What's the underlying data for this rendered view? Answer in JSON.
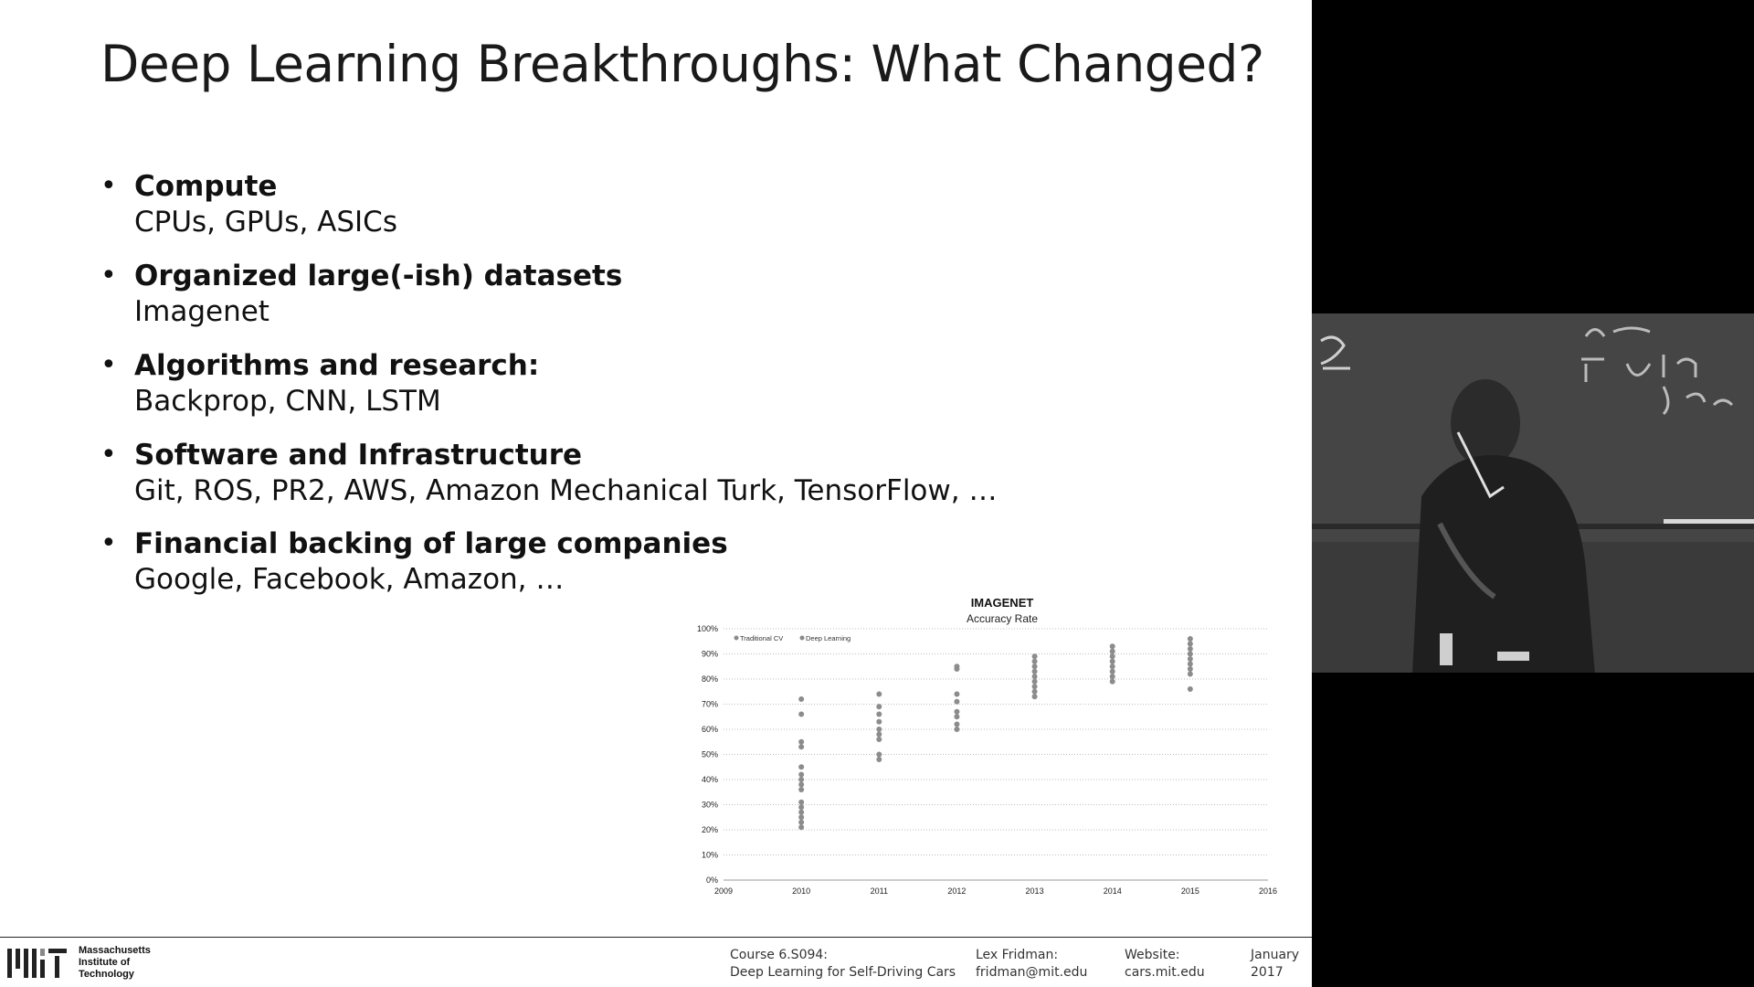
{
  "slide": {
    "title": "Deep Learning Breakthroughs: What Changed?",
    "bullets": [
      {
        "head": "Compute",
        "sub": "CPUs, GPUs, ASICs"
      },
      {
        "head": "Organized large(-ish) datasets",
        "sub": "Imagenet"
      },
      {
        "head": "Algorithms and research:",
        "sub": "Backprop, CNN, LSTM"
      },
      {
        "head": "Software and Infrastructure",
        "sub": "Git, ROS, PR2, AWS, Amazon Mechanical Turk, TensorFlow, …"
      },
      {
        "head": "Financial backing of large companies",
        "sub": "Google, Facebook, Amazon, …"
      }
    ]
  },
  "chart_data": {
    "type": "scatter",
    "title": "IMAGENET",
    "subtitle": "Accuracy Rate",
    "legend": [
      "Traditional CV",
      "Deep Learning"
    ],
    "legend_position": "top-left",
    "x_ticks": [
      "2009",
      "2010",
      "2011",
      "2012",
      "2013",
      "2014",
      "2015",
      "2016"
    ],
    "y_ticks": [
      "0%",
      "10%",
      "20%",
      "30%",
      "40%",
      "50%",
      "60%",
      "70%",
      "80%",
      "90%",
      "100%"
    ],
    "ylim": [
      0,
      100
    ],
    "xlim": [
      2009,
      2016
    ],
    "grid": "dotted horizontal",
    "series": [
      {
        "name": "Traditional CV",
        "points": [
          [
            2010,
            72
          ],
          [
            2010,
            66
          ],
          [
            2010,
            55
          ],
          [
            2010,
            53
          ],
          [
            2010,
            45
          ],
          [
            2010,
            42
          ],
          [
            2010,
            40
          ],
          [
            2010,
            38
          ],
          [
            2010,
            36
          ],
          [
            2010,
            31
          ],
          [
            2010,
            29
          ],
          [
            2010,
            27
          ],
          [
            2010,
            25
          ],
          [
            2010,
            23
          ],
          [
            2010,
            21
          ],
          [
            2011,
            74
          ],
          [
            2011,
            69
          ],
          [
            2011,
            66
          ],
          [
            2011,
            63
          ],
          [
            2011,
            60
          ],
          [
            2011,
            58
          ],
          [
            2011,
            56
          ],
          [
            2011,
            50
          ],
          [
            2011,
            48
          ],
          [
            2012,
            85
          ],
          [
            2012,
            84
          ],
          [
            2012,
            74
          ],
          [
            2012,
            71
          ],
          [
            2012,
            67
          ],
          [
            2012,
            65
          ],
          [
            2012,
            62
          ],
          [
            2012,
            60
          ]
        ]
      },
      {
        "name": "Deep Learning",
        "points": [
          [
            2013,
            89
          ],
          [
            2013,
            87
          ],
          [
            2013,
            85
          ],
          [
            2013,
            83
          ],
          [
            2013,
            81
          ],
          [
            2013,
            79
          ],
          [
            2013,
            77
          ],
          [
            2013,
            75
          ],
          [
            2013,
            73
          ],
          [
            2014,
            93
          ],
          [
            2014,
            91
          ],
          [
            2014,
            89
          ],
          [
            2014,
            87
          ],
          [
            2014,
            85
          ],
          [
            2014,
            83
          ],
          [
            2014,
            81
          ],
          [
            2014,
            79
          ],
          [
            2015,
            96
          ],
          [
            2015,
            94
          ],
          [
            2015,
            92
          ],
          [
            2015,
            90
          ],
          [
            2015,
            88
          ],
          [
            2015,
            86
          ],
          [
            2015,
            84
          ],
          [
            2015,
            82
          ],
          [
            2015,
            76
          ]
        ]
      }
    ]
  },
  "footer": {
    "institution": [
      "Massachusetts",
      "Institute of",
      "Technology"
    ],
    "course_label": "Course 6.S094:",
    "course_name": "Deep Learning for Self-Driving Cars",
    "author_label": "Lex Fridman:",
    "author_email": "fridman@mit.edu",
    "website_label": "Website:",
    "website_url": "cars.mit.edu",
    "date_month": "January",
    "date_year": "2017"
  },
  "video": {
    "icon": "lecture-video-feed"
  }
}
